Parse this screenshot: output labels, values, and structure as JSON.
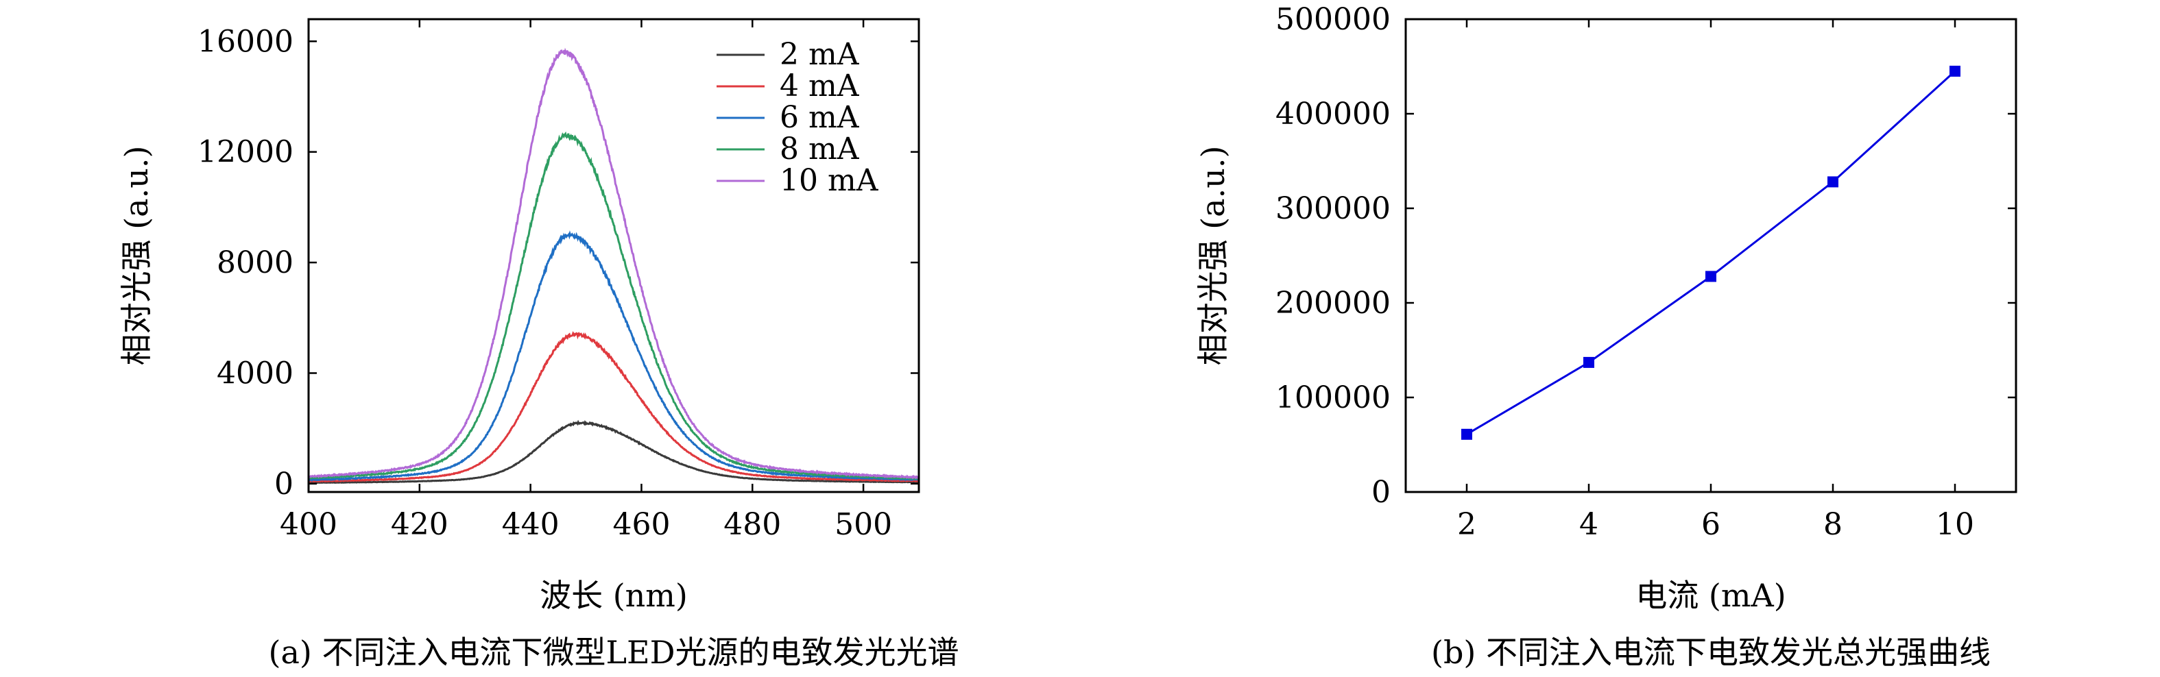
{
  "chart_data": [
    {
      "type": "line",
      "xlabel": "波长 (nm)",
      "ylabel": "相对光强 (a.u.)",
      "caption": "(a) 不同注入电流下微型LED光源的电致发光光谱",
      "xlim": [
        400,
        510
      ],
      "ylim": [
        -300,
        16800
      ],
      "xticks": [
        400,
        420,
        440,
        460,
        480,
        500
      ],
      "yticks": [
        0,
        4000,
        8000,
        12000,
        16000
      ],
      "legend_position": "top-right",
      "series": [
        {
          "name": "2 mA",
          "color": "#3a3a3a",
          "peak_x": 449,
          "peak_y": 2200,
          "sigma_left": 7,
          "sigma_right": 11,
          "tail": 0.18,
          "noise": 40
        },
        {
          "name": "4 mA",
          "color": "#e0393e",
          "peak_x": 448,
          "peak_y": 5400,
          "sigma_left": 7.5,
          "sigma_right": 10.5,
          "tail": 0.15,
          "noise": 70
        },
        {
          "name": "6 mA",
          "color": "#1f6fc5",
          "peak_x": 447,
          "peak_y": 9000,
          "sigma_left": 7.5,
          "sigma_right": 10.5,
          "tail": 0.14,
          "noise": 100
        },
        {
          "name": "8 mA",
          "color": "#2e9e62",
          "peak_x": 446.5,
          "peak_y": 12600,
          "sigma_left": 8,
          "sigma_right": 10.5,
          "tail": 0.13,
          "noise": 120
        },
        {
          "name": "10 mA",
          "color": "#b16ad6",
          "peak_x": 446,
          "peak_y": 15600,
          "sigma_left": 8,
          "sigma_right": 10.5,
          "tail": 0.13,
          "noise": 140
        }
      ]
    },
    {
      "type": "line",
      "xlabel": "电流 (mA)",
      "ylabel": "相对光强 (a.u.)",
      "caption": "(b) 不同注入电流下电致发光总光强曲线",
      "xlim": [
        1,
        11
      ],
      "ylim": [
        0,
        500000
      ],
      "xticks": [
        2,
        4,
        6,
        8,
        10
      ],
      "yticks": [
        0,
        100000,
        200000,
        300000,
        400000,
        500000
      ],
      "color": "#0000e0",
      "x": [
        2,
        4,
        6,
        8,
        10
      ],
      "y": [
        61000,
        137000,
        228000,
        328000,
        445000
      ]
    }
  ]
}
